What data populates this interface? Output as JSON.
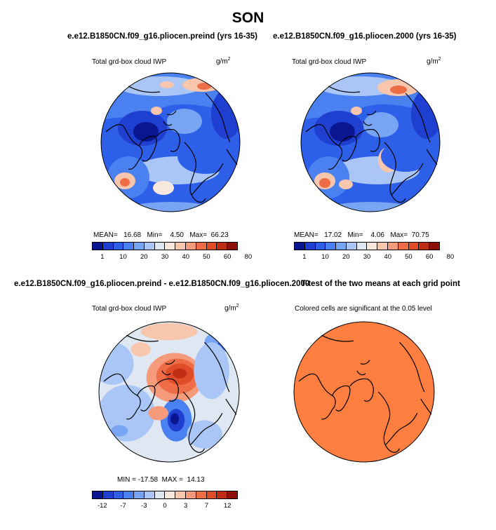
{
  "title": "SON",
  "colors": {
    "scale": [
      "#0a1690",
      "#1f3fd0",
      "#2e5fe8",
      "#4a80f0",
      "#78a4f4",
      "#a9c6f6",
      "#dfe8f2",
      "#f7e7dc",
      "#f8c6ad",
      "#f59a7a",
      "#ef6d46",
      "#e04c28",
      "#bf2e14",
      "#8e0f08"
    ]
  },
  "panels": {
    "top_left": {
      "case_title": "e.e12.B1850CN.f09_g16.pliocen.preind (yrs 16-35)",
      "variable": "Total grd-box cloud IWP",
      "units_base": "g/m",
      "units_exp": "2",
      "stats": {
        "mean_label": "MEAN=",
        "mean": "16.68",
        "min_label": "Min=",
        "min": "4.50",
        "max_label": "Max=",
        "max": "66.23"
      },
      "ticks": [
        "1",
        "10",
        "20",
        "30",
        "40",
        "50",
        "60",
        "80"
      ]
    },
    "top_right": {
      "case_title": "e.e12.B1850CN.f09_g16.pliocen.2000 (yrs 16-35)",
      "variable": "Total grd-box cloud IWP",
      "units_base": "g/m",
      "units_exp": "2",
      "stats": {
        "mean_label": "MEAN=",
        "mean": "17.02",
        "min_label": "Min=",
        "min": "4.06",
        "max_label": "Max=",
        "max": "70.75"
      },
      "ticks": [
        "1",
        "10",
        "20",
        "30",
        "40",
        "50",
        "60",
        "80"
      ]
    },
    "bottom_left": {
      "case_title": "e.e12.B1850CN.f09_g16.pliocen.preind - e.e12.B1850CN.f09_g16.pliocen.2000",
      "variable": "Total grd-box cloud IWP",
      "units_base": "g/m",
      "units_exp": "2",
      "stats": {
        "min_label": "MIN =",
        "min": "-17.58",
        "max_label": "MAX =",
        "max": "14.13"
      },
      "ticks": [
        "-12",
        "-7",
        "-3",
        "0",
        "3",
        "7",
        "12"
      ]
    },
    "bottom_right": {
      "case_title": "T-test of the two means at each grid point",
      "note": "Colored cells are significant at the 0.05 level"
    }
  }
}
